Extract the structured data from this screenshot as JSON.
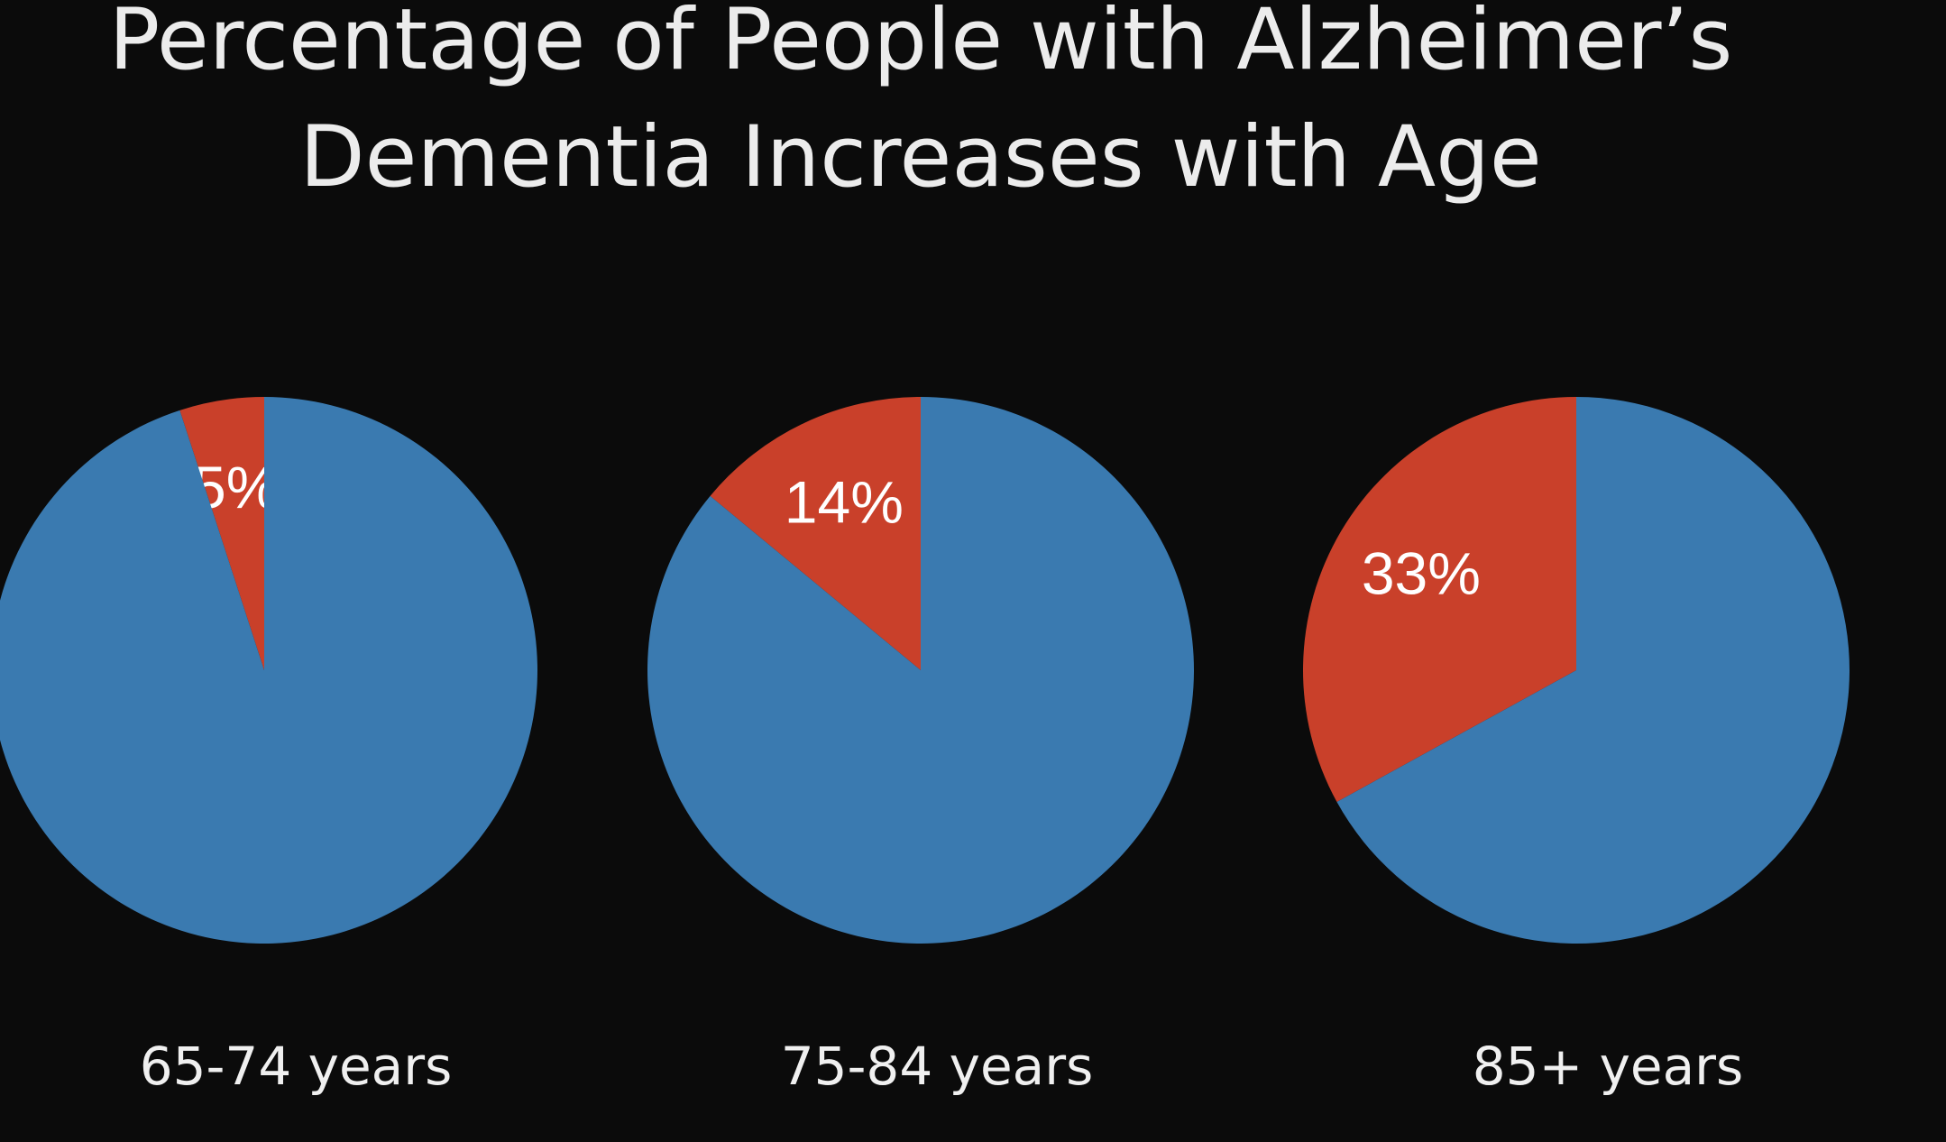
{
  "title": [
    "Percentage of People with Alzheimer’s",
    "Dementia Increases with Age"
  ],
  "chart_data": [
    {
      "type": "pie",
      "title": "65-74 years",
      "values": [
        5,
        95
      ],
      "value_labels": [
        "5%",
        null
      ],
      "colors": [
        "#c9402a",
        "#3a7ab0"
      ]
    },
    {
      "type": "pie",
      "title": "75-84 years",
      "values": [
        14,
        86
      ],
      "value_labels": [
        "14%",
        null
      ],
      "colors": [
        "#c9402a",
        "#3a7ab0"
      ]
    },
    {
      "type": "pie",
      "title": "85+ years",
      "values": [
        33,
        67
      ],
      "value_labels": [
        "33%",
        null
      ],
      "colors": [
        "#c9402a",
        "#3a7ab0"
      ]
    }
  ]
}
